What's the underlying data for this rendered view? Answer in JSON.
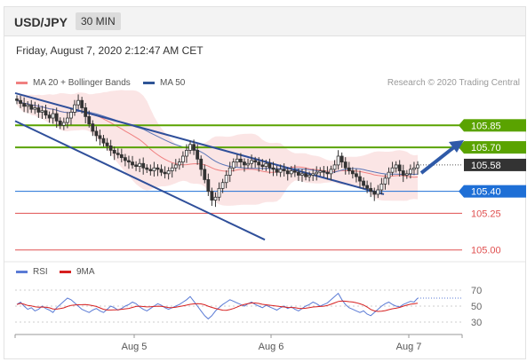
{
  "header": {
    "symbol": "USD/JPY",
    "timeframe": "30 MIN"
  },
  "timestamp": "Friday, August 7, 2020 2:12:47 AM CET",
  "credit": "Research © 2020 Trading Central",
  "legend": {
    "main": [
      {
        "label": "MA 20 + Bollinger Bands",
        "color": "#f08080"
      },
      {
        "label": "MA 50",
        "color": "#2f5496"
      }
    ],
    "rsi": [
      {
        "label": "RSI",
        "color": "#5b7bd5"
      },
      {
        "label": "9MA",
        "color": "#d62020"
      }
    ]
  },
  "chart_data": {
    "type": "candlestick",
    "instrument": "USD/JPY",
    "interval": "30 MIN",
    "ylim": [
      104.95,
      106.1
    ],
    "x_ticks": [
      "Aug 5",
      "Aug 6",
      "Aug 7"
    ],
    "current_price": {
      "value": "105.58",
      "color": "#333333"
    },
    "levels": [
      {
        "value": 105.85,
        "label": "105.85",
        "role": "target",
        "color": "#5aa300",
        "tag": true
      },
      {
        "value": 105.7,
        "label": "105.70",
        "role": "target",
        "color": "#5aa300",
        "tag": true
      },
      {
        "value": 105.4,
        "label": "105.40",
        "role": "pivot",
        "color": "#1e6fd6",
        "tag": true
      },
      {
        "value": 105.25,
        "label": "105.25",
        "role": "support",
        "color": "#e05050",
        "tag": false
      },
      {
        "value": 105.0,
        "label": "105.00",
        "role": "support",
        "color": "#e05050",
        "tag": false
      }
    ],
    "closes": [
      106.02,
      106.0,
      105.98,
      105.99,
      105.96,
      105.97,
      105.94,
      105.95,
      105.92,
      105.9,
      105.93,
      105.88,
      105.85,
      105.87,
      105.9,
      105.94,
      105.99,
      106.02,
      105.97,
      105.91,
      105.86,
      105.81,
      105.78,
      105.76,
      105.73,
      105.71,
      105.68,
      105.66,
      105.65,
      105.63,
      105.61,
      105.6,
      105.58,
      105.57,
      105.59,
      105.56,
      105.55,
      105.54,
      105.56,
      105.55,
      105.53,
      105.52,
      105.54,
      105.56,
      105.58,
      105.6,
      105.64,
      105.68,
      105.72,
      105.68,
      105.62,
      105.55,
      105.48,
      105.4,
      105.34,
      105.36,
      105.42,
      105.46,
      105.51,
      105.56,
      105.6,
      105.62,
      105.6,
      105.58,
      105.59,
      105.61,
      105.6,
      105.58,
      105.57,
      105.59,
      105.56,
      105.55,
      105.53,
      105.55,
      105.54,
      105.52,
      105.54,
      105.53,
      105.51,
      105.52,
      105.5,
      105.51,
      105.52,
      105.53,
      105.54,
      105.53,
      105.52,
      105.55,
      105.58,
      105.64,
      105.6,
      105.56,
      105.54,
      105.52,
      105.5,
      105.47,
      105.44,
      105.42,
      105.4,
      105.38,
      105.41,
      105.45,
      105.49,
      105.53,
      105.56,
      105.58,
      105.54,
      105.51,
      105.52,
      105.55,
      105.56,
      105.58
    ],
    "channels": [
      {
        "from": {
          "x": "Aug 4",
          "y": 105.88
        },
        "to": {
          "x": "Aug 6",
          "y": 105.07
        }
      },
      {
        "from": {
          "x": "Aug 4",
          "y": 106.07
        },
        "to": {
          "x": "Aug 7",
          "y": 105.38
        }
      }
    ],
    "rsi": {
      "ylim": [
        20,
        80
      ],
      "ticks": [
        "70",
        "50",
        "30"
      ],
      "values": [
        52,
        55,
        50,
        46,
        48,
        44,
        46,
        50,
        47,
        45,
        42,
        48,
        52,
        56,
        60,
        58,
        54,
        50,
        46,
        44,
        42,
        45,
        47,
        44,
        42,
        46,
        50,
        48,
        45,
        47,
        50,
        52,
        55,
        53,
        49,
        46,
        44,
        47,
        50,
        53,
        51,
        48,
        46,
        48,
        50,
        52,
        55,
        58,
        62,
        56,
        50,
        44,
        38,
        34,
        38,
        44,
        48,
        52,
        55,
        58,
        56,
        54,
        52,
        50,
        53,
        55,
        52,
        50,
        48,
        51,
        49,
        47,
        45,
        48,
        50,
        47,
        49,
        46,
        44,
        47,
        50,
        52,
        55,
        53,
        50,
        52,
        54,
        58,
        62,
        66,
        58,
        52,
        48,
        46,
        44,
        42,
        44,
        40,
        38,
        42,
        46,
        50,
        53,
        55,
        52,
        50,
        49,
        52,
        54,
        56,
        55,
        60
      ]
    }
  }
}
